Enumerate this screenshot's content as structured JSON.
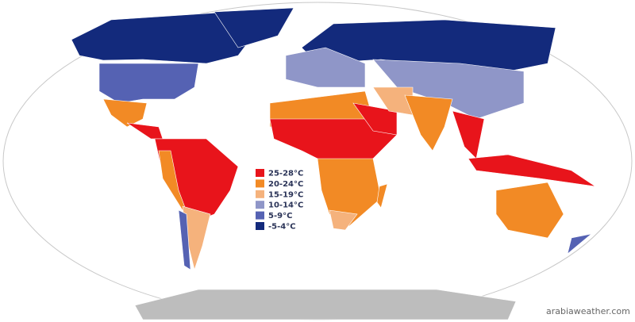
{
  "legend": {
    "items": [
      {
        "label": "25-28°C",
        "color": "#e8141b"
      },
      {
        "label": "20-24°C",
        "color": "#f28a25"
      },
      {
        "label": "15-19°C",
        "color": "#f5b27c"
      },
      {
        "label": "10-14°C",
        "color": "#8f96c8"
      },
      {
        "label": "5-9°C",
        "color": "#5562b3"
      },
      {
        "label": "-5-4°C",
        "color": "#132a7c"
      }
    ]
  },
  "watermark": "arabiaweather.com"
}
